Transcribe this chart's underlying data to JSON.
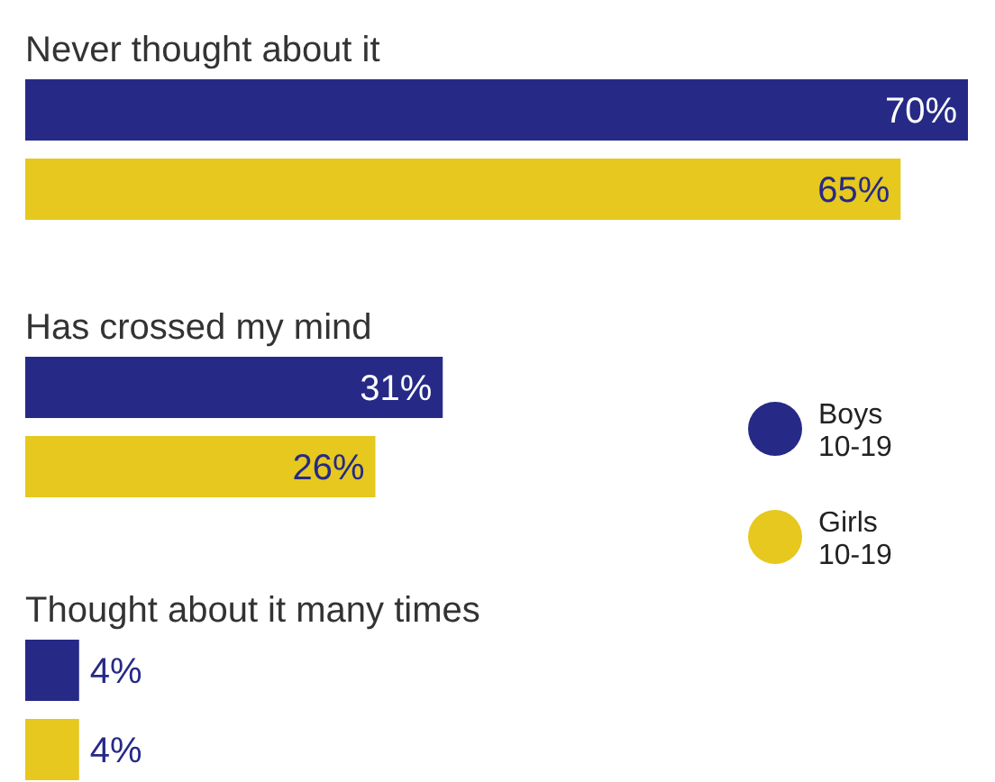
{
  "chart_data": {
    "type": "bar",
    "orientation": "horizontal",
    "categories": [
      "Never thought about it",
      "Has crossed my mind",
      "Thought about it many times"
    ],
    "series": [
      {
        "name": "Boys 10-19",
        "color": "#262a86",
        "values": [
          70,
          31,
          4
        ],
        "value_labels": [
          "70%",
          "31%",
          "4%"
        ]
      },
      {
        "name": "Girls 10-19",
        "color": "#e6c81e",
        "values": [
          65,
          26,
          4
        ],
        "value_labels": [
          "65%",
          "26%",
          "4%"
        ]
      }
    ],
    "legend": "right"
  }
}
